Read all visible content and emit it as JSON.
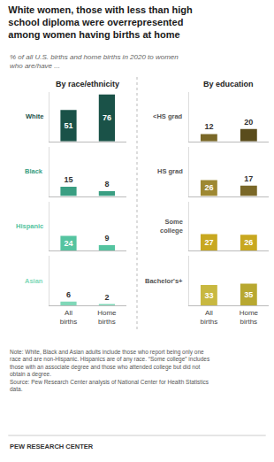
{
  "title": "White women, those with less than high\nschool diploma were overrepresented\namong women having births at home",
  "subtitle": "% of all U.S. births and home births in 2020 to women\nwho are/have ...",
  "annotations": [
    "Note: White, Black and Asian adults include those who report being only one race and are non-Hispanic. Hispanics are of any race.",
    "“Some college” includes those with an associate degree and those who attended college but did not obtain a degree.",
    "Source: Pew Research Center analysis of National Center for Health Statistics data.",
    "PEW RESEARCH CENTER"
  ],
  "chart_data": [
    {
      "type": "bar",
      "title": "By race/ethnicity",
      "categories": [
        "All\nbirths",
        "Home\nbirths"
      ],
      "series": [
        {
          "name": "White",
          "color": "#1a5248",
          "values": [
            51,
            76
          ]
        },
        {
          "name": "Black",
          "color": "#3a9e82",
          "values": [
            15,
            8
          ]
        },
        {
          "name": "Hispanic",
          "color": "#55c4a0",
          "values": [
            24,
            9
          ]
        },
        {
          "name": "Asian",
          "color": "#80d8b8",
          "values": [
            6,
            2
          ]
        }
      ],
      "ylim": [
        0,
        80
      ],
      "grid": false,
      "data_labels": true,
      "tick_labels": "x"
    },
    {
      "type": "bar",
      "title": "By education",
      "categories": [
        "All\nbirths",
        "Home\nbirths"
      ],
      "series": [
        {
          "name": "<HS grad",
          "colors": [
            "#7a6828",
            "#5a4c1c"
          ],
          "values": [
            12,
            20
          ]
        },
        {
          "name": "HS grad",
          "colors": [
            "#9e8832",
            "#7a6828"
          ],
          "values": [
            26,
            17
          ]
        },
        {
          "name": "Some\ncollege",
          "colors": [
            "#c8a820",
            "#c8a820"
          ],
          "values": [
            27,
            26
          ]
        },
        {
          "name": "Bachelor's+",
          "colors": [
            "#c8b840",
            "#b8a830"
          ],
          "values": [
            33,
            35
          ]
        }
      ],
      "ylim": [
        0,
        80
      ],
      "grid": false,
      "data_labels": true,
      "tick_labels": "x"
    }
  ]
}
